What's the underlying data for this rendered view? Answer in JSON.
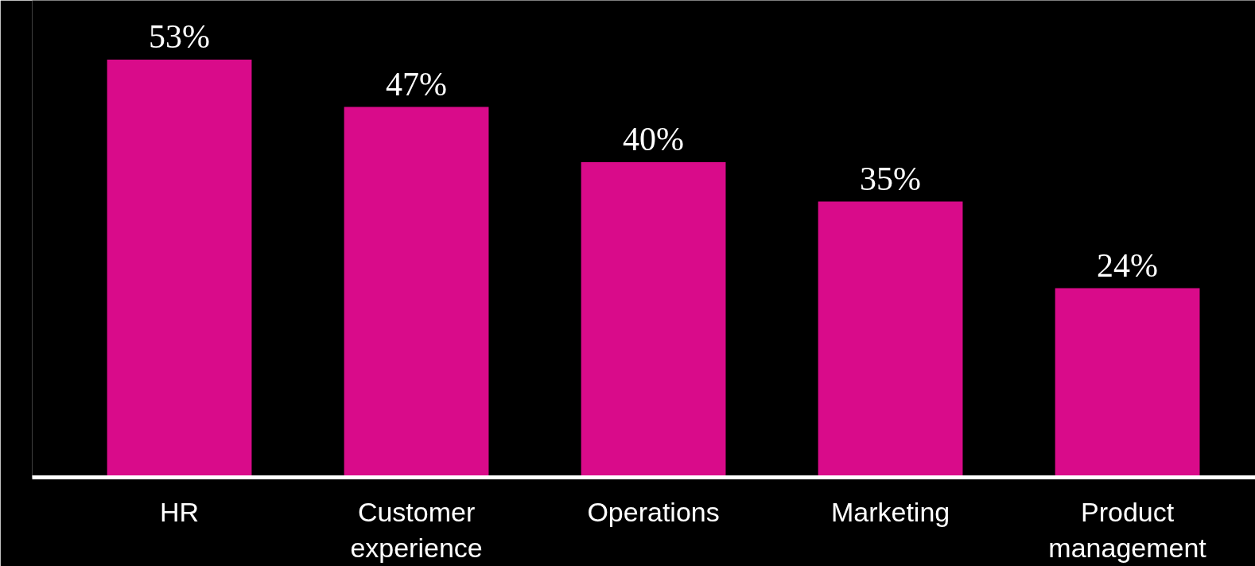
{
  "chart_data": {
    "type": "bar",
    "categories": [
      "HR",
      "Customer experience",
      "Operations",
      "Marketing",
      "Product management"
    ],
    "values": [
      53,
      47,
      40,
      35,
      24
    ],
    "color": "#d90b8a",
    "value_labels": [
      "53%",
      "47%",
      "40%",
      "35%",
      "24%"
    ]
  }
}
